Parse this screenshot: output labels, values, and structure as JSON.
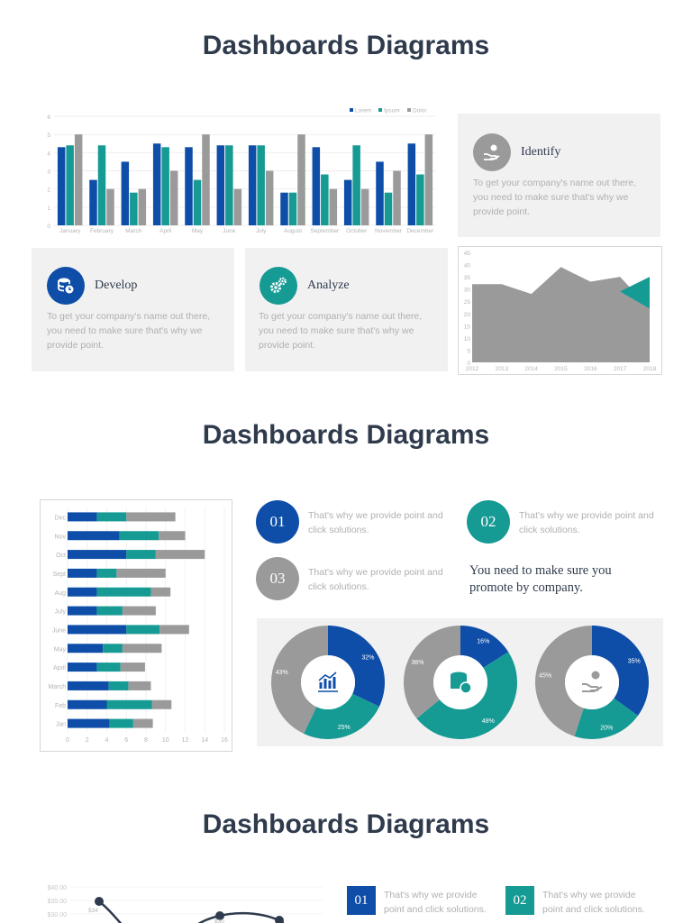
{
  "titles": [
    "Dashboards Diagrams",
    "Dashboards Diagrams",
    "Dashboards Diagrams"
  ],
  "colors": {
    "blue": "#0e4ea8",
    "teal": "#169a94",
    "gray": "#9a9a9a",
    "dark": "#2f3b4d"
  },
  "cards": {
    "identify": {
      "title": "Identify",
      "body": "To get your company's name out there, you need to make sure that's why we provide point.",
      "icon": "hand-coin-icon"
    },
    "develop": {
      "title": "Develop",
      "body": "To get your company's name out there, you need to make sure that's why we provide point.",
      "icon": "database-clock-icon"
    },
    "analyze": {
      "title": "Analyze",
      "body": "To get your company's name out there, you need to make sure that's why we provide point.",
      "icon": "gears-icon"
    }
  },
  "numbered": {
    "n1": {
      "num": "01",
      "text": "That's why we provide point and click solutions."
    },
    "n2": {
      "num": "02",
      "text": "That's why we provide point and click solutions."
    },
    "n3": {
      "num": "03",
      "text": "That's why we provide point and click solutions."
    },
    "quote": "You need to make sure you promote by company."
  },
  "bottom_numbered": {
    "n1": {
      "num": "01",
      "text": "That's why we provide point and click solutions."
    },
    "n2": {
      "num": "02",
      "text": "That's why we provide point and click solutions."
    }
  },
  "chart_data": [
    {
      "type": "bar",
      "categories": [
        "January",
        "February",
        "March",
        "April",
        "May",
        "June",
        "July",
        "August",
        "September",
        "October",
        "November",
        "December"
      ],
      "series": [
        {
          "name": "Lorem",
          "values": [
            4.3,
            2.5,
            3.5,
            4.5,
            4.3,
            4.4,
            4.4,
            1.8,
            4.3,
            2.5,
            3.5,
            4.5
          ]
        },
        {
          "name": "Ipsum",
          "values": [
            4.4,
            4.4,
            1.8,
            4.3,
            2.5,
            4.4,
            4.4,
            1.8,
            2.8,
            4.4,
            1.8,
            2.8
          ]
        },
        {
          "name": "Dolor",
          "values": [
            5,
            2,
            2,
            3,
            5,
            2,
            3,
            5,
            2,
            2,
            3,
            5
          ]
        }
      ],
      "ylim": [
        0,
        6
      ],
      "yticks": [
        0,
        1,
        2,
        3,
        4,
        5,
        6
      ],
      "legend": "top-right"
    },
    {
      "type": "area",
      "x": [
        "2012",
        "2013",
        "2014",
        "2015",
        "2016",
        "2017",
        "2018"
      ],
      "series": [
        {
          "values": [
            32,
            32,
            28,
            39,
            33,
            35,
            22
          ]
        },
        {
          "values": [
            null,
            null,
            null,
            null,
            null,
            29,
            35
          ]
        }
      ],
      "ylim": [
        0,
        45
      ],
      "yticks": [
        0,
        5,
        10,
        15,
        20,
        25,
        30,
        35,
        40,
        45
      ]
    },
    {
      "type": "bar",
      "orientation": "horizontal",
      "stacked": true,
      "categories": [
        "Dec",
        "Nov",
        "Oct",
        "Sept",
        "Aug",
        "July",
        "June",
        "May",
        "April",
        "March",
        "Feb",
        "Jan"
      ],
      "series": [
        {
          "values": [
            3,
            5.3,
            6,
            3,
            3,
            3,
            6,
            3.6,
            3,
            4.2,
            4,
            4.3
          ]
        },
        {
          "values": [
            3,
            4,
            3,
            2,
            5.5,
            2.6,
            3.4,
            2,
            2.4,
            2,
            4.6,
            2.4
          ]
        },
        {
          "values": [
            5,
            2.7,
            5,
            5,
            2,
            3.4,
            3,
            4,
            2.5,
            2.3,
            2,
            2
          ]
        }
      ],
      "xlim": [
        0,
        16
      ],
      "xticks": [
        0,
        2,
        4,
        6,
        8,
        10,
        12,
        14,
        16
      ]
    },
    {
      "type": "pie",
      "donuts": [
        {
          "labels": [
            "32%",
            "25%",
            "43%"
          ],
          "values": [
            32,
            25,
            43
          ],
          "icon": "chart-growth-icon"
        },
        {
          "labels": [
            "16%",
            "48%",
            "36%"
          ],
          "values": [
            16,
            48,
            36
          ],
          "icon": "database-clock-icon"
        },
        {
          "labels": [
            "35%",
            "20%",
            "45%"
          ],
          "values": [
            35,
            20,
            45
          ],
          "icon": "hand-coin-icon"
        }
      ]
    },
    {
      "type": "line",
      "ylabels": [
        "$40.00",
        "$35.00",
        "$30.00"
      ],
      "labels": [
        "$34",
        "$30"
      ]
    }
  ]
}
